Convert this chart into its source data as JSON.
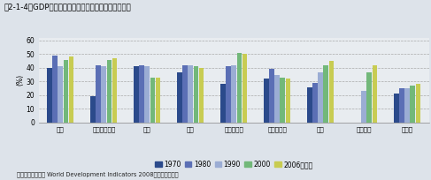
{
  "title": "図2-1-4　GDPに占める製造業付加価値額の割合の推移",
  "ylabel": "(%)",
  "footnote": "資料：世界銀行、 World Development Indicators 2008より環境省作成",
  "categories": [
    "中国",
    "インドネシア",
    "日本",
    "韓国",
    "マレーシア",
    "フィリピン",
    "タイ",
    "ベトナム",
    "インド"
  ],
  "years": [
    "1970",
    "1980",
    "1990",
    "2000",
    "2006"
  ],
  "colors": [
    "#2B4A8B",
    "#5B6FB5",
    "#9BADD4",
    "#72B87A",
    "#C8CC52"
  ],
  "data": {
    "中国": [
      40,
      49,
      41,
      46,
      48
    ],
    "インドネシア": [
      19,
      42,
      41,
      46,
      47
    ],
    "日本": [
      41,
      42,
      41,
      33,
      33
    ],
    "韓国": [
      37,
      42,
      42,
      41,
      40
    ],
    "マレーシア": [
      28,
      41,
      42,
      51,
      50
    ],
    "フィリピン": [
      32,
      39,
      35,
      33,
      32
    ],
    "タイ": [
      26,
      29,
      37,
      42,
      45
    ],
    "ベトナム": [
      0,
      0,
      23,
      37,
      42
    ],
    "インド": [
      21,
      25,
      25,
      27,
      28
    ]
  },
  "ylim": [
    0,
    62
  ],
  "yticks": [
    0,
    10,
    20,
    30,
    40,
    50,
    60
  ],
  "legend_labels": [
    "1970",
    "1980",
    "1990",
    "2000",
    "2006（年）"
  ],
  "bg_color": "#DDE3EA",
  "plot_bg_color": "#E8ECF0"
}
